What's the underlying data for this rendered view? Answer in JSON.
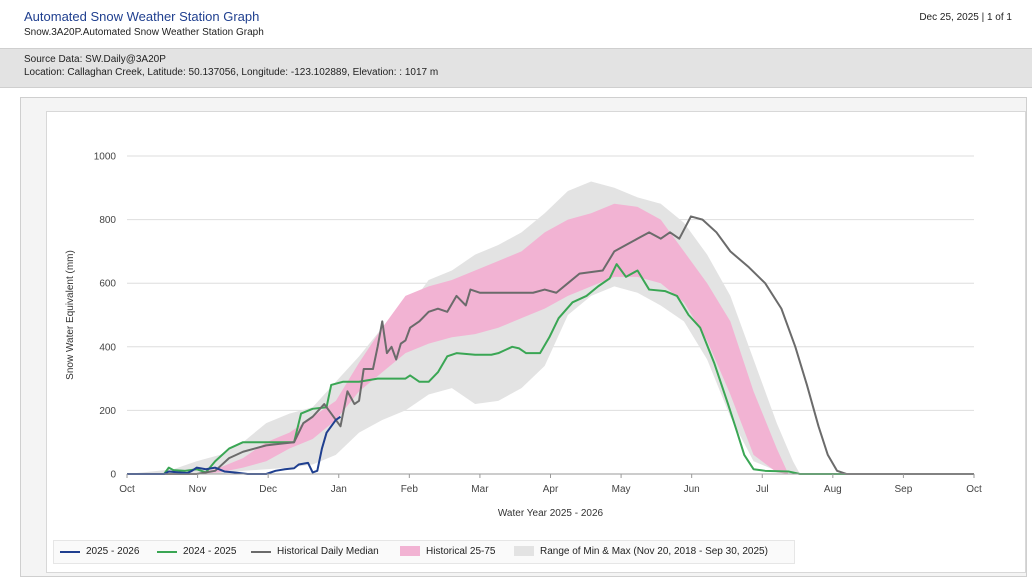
{
  "header": {
    "title": "Automated Snow Weather Station Graph",
    "subtitle": "Snow.3A20P.Automated Snow Weather Station Graph",
    "page_info": "Dec 25, 2025 | 1 of 1"
  },
  "meta": {
    "source": "Source Data: SW.Daily@3A20P",
    "location": "Location: Callaghan Creek, Latitude: 50.137056, Longitude: -123.102889, Elevation: : 1017 m"
  },
  "colors": {
    "current": "#1f3f8f",
    "previous": "#3aa654",
    "median": "#6b6b6b",
    "band_25_75": "#f2b3d3",
    "band_min_max": "#e3e3e3"
  },
  "legend": [
    {
      "label": "2025 - 2026",
      "kind": "line",
      "color": "#1f3f8f"
    },
    {
      "label": "2024 - 2025",
      "kind": "line",
      "color": "#3aa654"
    },
    {
      "label": "Historical Daily Median",
      "kind": "line",
      "color": "#6b6b6b"
    },
    {
      "label": "Historical 25-75",
      "kind": "box",
      "color": "#f2b3d3"
    },
    {
      "label": "Range of Min & Max (Nov 20, 2018 - Sep 30, 2025)",
      "kind": "box",
      "color": "#e3e3e3"
    }
  ],
  "chart_data": {
    "type": "line",
    "xlabel": "Water Year 2025 - 2026",
    "ylabel": "Snow Water Equivalent (mm)",
    "ylim": [
      0,
      1000
    ],
    "yticks": [
      "0",
      "200",
      "400",
      "600",
      "800",
      "1000"
    ],
    "xticks": [
      "Oct",
      "Nov",
      "Dec",
      "Jan",
      "Feb",
      "Mar",
      "Apr",
      "May",
      "Jun",
      "Jul",
      "Aug",
      "Sep",
      "Oct"
    ],
    "grid": true,
    "legend_position": "bottom",
    "series": [
      {
        "name": "Range of Min & Max (Nov 20, 2018 - Sep 30, 2025)",
        "kind": "band",
        "points": [
          [
            0,
            0,
            0
          ],
          [
            20,
            0,
            15
          ],
          [
            30,
            0,
            40
          ],
          [
            40,
            0,
            60
          ],
          [
            50,
            10,
            100
          ],
          [
            60,
            15,
            160
          ],
          [
            70,
            20,
            190
          ],
          [
            80,
            30,
            210
          ],
          [
            90,
            60,
            290
          ],
          [
            100,
            130,
            370
          ],
          [
            110,
            170,
            460
          ],
          [
            120,
            200,
            510
          ],
          [
            130,
            250,
            610
          ],
          [
            140,
            270,
            640
          ],
          [
            150,
            220,
            690
          ],
          [
            160,
            230,
            720
          ],
          [
            170,
            270,
            760
          ],
          [
            180,
            340,
            820
          ],
          [
            190,
            500,
            890
          ],
          [
            200,
            560,
            920
          ],
          [
            210,
            590,
            900
          ],
          [
            220,
            570,
            870
          ],
          [
            230,
            530,
            850
          ],
          [
            240,
            480,
            790
          ],
          [
            250,
            360,
            690
          ],
          [
            260,
            180,
            560
          ],
          [
            270,
            40,
            360
          ],
          [
            280,
            10,
            160
          ],
          [
            287,
            0,
            40
          ],
          [
            290,
            0,
            0
          ],
          [
            365,
            0,
            0
          ]
        ]
      },
      {
        "name": "Historical 25-75",
        "kind": "band",
        "points": [
          [
            0,
            0,
            0
          ],
          [
            30,
            0,
            0
          ],
          [
            40,
            5,
            20
          ],
          [
            50,
            20,
            50
          ],
          [
            60,
            40,
            100
          ],
          [
            70,
            80,
            130
          ],
          [
            80,
            110,
            180
          ],
          [
            90,
            170,
            230
          ],
          [
            100,
            260,
            350
          ],
          [
            110,
            320,
            460
          ],
          [
            120,
            380,
            560
          ],
          [
            130,
            410,
            590
          ],
          [
            140,
            430,
            610
          ],
          [
            150,
            440,
            640
          ],
          [
            160,
            460,
            670
          ],
          [
            170,
            490,
            700
          ],
          [
            180,
            520,
            760
          ],
          [
            190,
            560,
            800
          ],
          [
            200,
            590,
            820
          ],
          [
            210,
            620,
            850
          ],
          [
            220,
            620,
            840
          ],
          [
            230,
            600,
            800
          ],
          [
            240,
            540,
            700
          ],
          [
            250,
            420,
            600
          ],
          [
            260,
            250,
            480
          ],
          [
            270,
            60,
            260
          ],
          [
            280,
            5,
            80
          ],
          [
            285,
            0,
            0
          ],
          [
            365,
            0,
            0
          ]
        ]
      },
      {
        "name": "2024 - 2025",
        "kind": "line",
        "points": [
          [
            0,
            0
          ],
          [
            16,
            0
          ],
          [
            18,
            20
          ],
          [
            20,
            12
          ],
          [
            25,
            10
          ],
          [
            30,
            15
          ],
          [
            34,
            5
          ],
          [
            38,
            40
          ],
          [
            44,
            80
          ],
          [
            50,
            100
          ],
          [
            60,
            100
          ],
          [
            72,
            100
          ],
          [
            75,
            190
          ],
          [
            80,
            205
          ],
          [
            86,
            210
          ],
          [
            88,
            280
          ],
          [
            93,
            290
          ],
          [
            100,
            290
          ],
          [
            108,
            300
          ],
          [
            120,
            300
          ],
          [
            122,
            310
          ],
          [
            126,
            290
          ],
          [
            130,
            290
          ],
          [
            134,
            320
          ],
          [
            138,
            370
          ],
          [
            142,
            380
          ],
          [
            150,
            375
          ],
          [
            157,
            375
          ],
          [
            160,
            380
          ],
          [
            163,
            390
          ],
          [
            166,
            400
          ],
          [
            169,
            395
          ],
          [
            172,
            380
          ],
          [
            178,
            380
          ],
          [
            182,
            430
          ],
          [
            186,
            490
          ],
          [
            192,
            540
          ],
          [
            198,
            560
          ],
          [
            203,
            590
          ],
          [
            208,
            615
          ],
          [
            211,
            660
          ],
          [
            215,
            620
          ],
          [
            220,
            640
          ],
          [
            225,
            580
          ],
          [
            232,
            575
          ],
          [
            237,
            560
          ],
          [
            242,
            500
          ],
          [
            247,
            460
          ],
          [
            253,
            350
          ],
          [
            259,
            220
          ],
          [
            263,
            130
          ],
          [
            266,
            60
          ],
          [
            270,
            15
          ],
          [
            275,
            10
          ],
          [
            285,
            8
          ],
          [
            290,
            0
          ],
          [
            365,
            0
          ]
        ]
      },
      {
        "name": "Historical Daily Median",
        "kind": "line",
        "points": [
          [
            0,
            0
          ],
          [
            30,
            0
          ],
          [
            38,
            10
          ],
          [
            44,
            50
          ],
          [
            50,
            70
          ],
          [
            55,
            80
          ],
          [
            60,
            90
          ],
          [
            66,
            95
          ],
          [
            72,
            100
          ],
          [
            76,
            160
          ],
          [
            80,
            180
          ],
          [
            85,
            220
          ],
          [
            88,
            190
          ],
          [
            92,
            150
          ],
          [
            95,
            260
          ],
          [
            98,
            220
          ],
          [
            100,
            230
          ],
          [
            102,
            330
          ],
          [
            106,
            330
          ],
          [
            108,
            400
          ],
          [
            110,
            480
          ],
          [
            112,
            380
          ],
          [
            114,
            400
          ],
          [
            116,
            360
          ],
          [
            118,
            410
          ],
          [
            120,
            420
          ],
          [
            122,
            460
          ],
          [
            126,
            480
          ],
          [
            130,
            510
          ],
          [
            134,
            520
          ],
          [
            138,
            510
          ],
          [
            142,
            560
          ],
          [
            146,
            530
          ],
          [
            148,
            580
          ],
          [
            152,
            570
          ],
          [
            165,
            570
          ],
          [
            175,
            570
          ],
          [
            180,
            580
          ],
          [
            185,
            570
          ],
          [
            190,
            600
          ],
          [
            195,
            630
          ],
          [
            205,
            640
          ],
          [
            210,
            700
          ],
          [
            215,
            720
          ],
          [
            220,
            740
          ],
          [
            225,
            760
          ],
          [
            230,
            740
          ],
          [
            234,
            760
          ],
          [
            238,
            740
          ],
          [
            243,
            810
          ],
          [
            248,
            800
          ],
          [
            254,
            760
          ],
          [
            260,
            700
          ],
          [
            268,
            650
          ],
          [
            275,
            600
          ],
          [
            282,
            520
          ],
          [
            288,
            400
          ],
          [
            293,
            280
          ],
          [
            298,
            150
          ],
          [
            302,
            60
          ],
          [
            306,
            10
          ],
          [
            310,
            0
          ],
          [
            365,
            0
          ]
        ]
      },
      {
        "name": "2025 - 2026",
        "kind": "line",
        "points": [
          [
            0,
            0
          ],
          [
            16,
            0
          ],
          [
            18,
            8
          ],
          [
            22,
            5
          ],
          [
            26,
            3
          ],
          [
            28,
            10
          ],
          [
            30,
            20
          ],
          [
            34,
            15
          ],
          [
            38,
            20
          ],
          [
            42,
            8
          ],
          [
            46,
            5
          ],
          [
            52,
            0
          ],
          [
            60,
            0
          ],
          [
            64,
            10
          ],
          [
            68,
            15
          ],
          [
            72,
            18
          ],
          [
            74,
            30
          ],
          [
            78,
            35
          ],
          [
            80,
            5
          ],
          [
            82,
            10
          ],
          [
            84,
            80
          ],
          [
            86,
            130
          ],
          [
            88,
            150
          ],
          [
            90,
            170
          ],
          [
            92,
            180
          ]
        ]
      }
    ]
  }
}
